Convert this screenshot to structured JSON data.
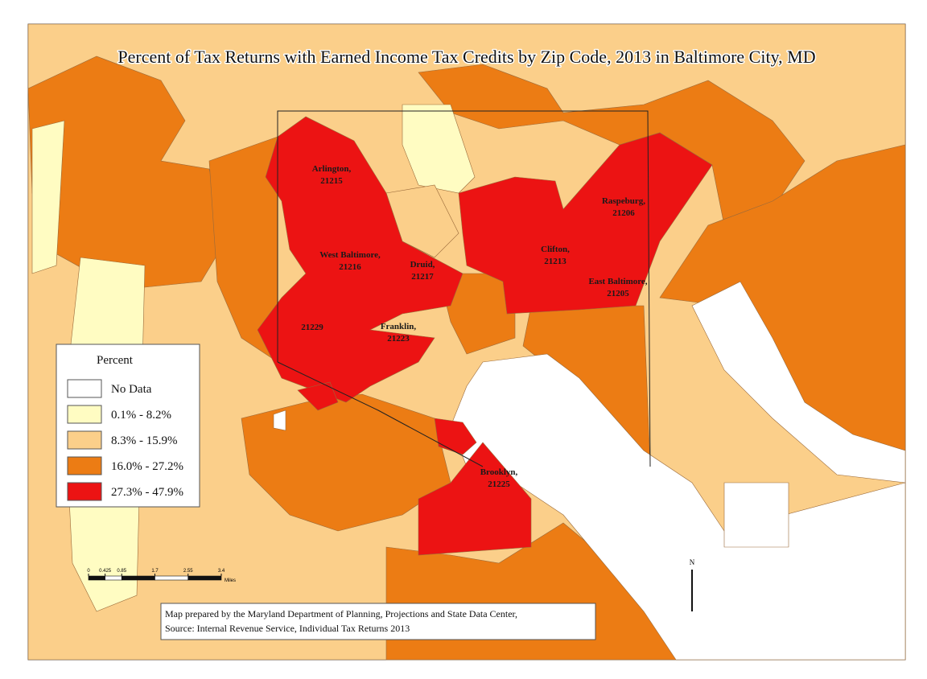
{
  "title": "Percent of Tax Returns with Earned Income Tax Credits by Zip Code, 2013 in Baltimore City, MD",
  "legend": {
    "title": "Percent",
    "items": [
      {
        "label": "No Data",
        "color": "#ffffff"
      },
      {
        "label": "0.1% - 8.2%",
        "color": "#fffcc2"
      },
      {
        "label": "8.3% - 15.9%",
        "color": "#fbcf8a"
      },
      {
        "label": "16.0% - 27.2%",
        "color": "#ec7c14"
      },
      {
        "label": "27.3% - 47.9%",
        "color": "#ec1313"
      }
    ]
  },
  "zip_labels": [
    {
      "lines": [
        "Arlington,",
        "21215"
      ]
    },
    {
      "lines": [
        "Raspeburg,",
        "21206"
      ]
    },
    {
      "lines": [
        "West Baltimore,",
        "21216"
      ]
    },
    {
      "lines": [
        "Druid,",
        "21217"
      ]
    },
    {
      "lines": [
        "Clifton,",
        "21213"
      ]
    },
    {
      "lines": [
        "East Baltimore,",
        "21205"
      ]
    },
    {
      "lines": [
        "21229"
      ]
    },
    {
      "lines": [
        "Franklin,",
        "21223"
      ]
    },
    {
      "lines": [
        "Brooklyn,",
        "21225"
      ]
    }
  ],
  "scale_bar": {
    "ticks": [
      0,
      0.425,
      0.85,
      1.7,
      2.55,
      3.4
    ],
    "unit": "Miles"
  },
  "north": "N",
  "credits": [
    "Map prepared by the Maryland Department of Planning, Projections and State Data Center,",
    "Source: Internal Revenue Service, Individual Tax Returns 2013"
  ]
}
